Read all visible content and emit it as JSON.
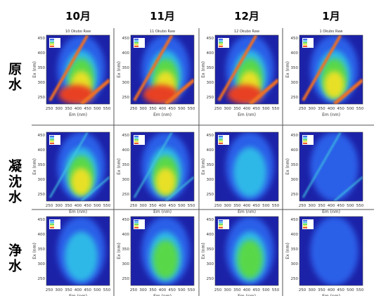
{
  "columns": [
    {
      "header": "10月",
      "subtitle": "10 Okubo Raw"
    },
    {
      "header": "11月",
      "subtitle": "11 Okubo Raw"
    },
    {
      "header": "12月",
      "subtitle": "12 Okubo Raw"
    },
    {
      "header": "1月",
      "subtitle": "1 Okubo Raw"
    }
  ],
  "rows": [
    {
      "header": "原水"
    },
    {
      "header": "凝沈水"
    },
    {
      "header": "浄水"
    }
  ],
  "axes": {
    "x_label": "Em (nm)",
    "y_label": "Ex (nm)",
    "x_ticks": [
      250,
      300,
      350,
      400,
      450,
      500,
      550
    ],
    "y_ticks": [
      250,
      300,
      350,
      400,
      450
    ]
  }
}
